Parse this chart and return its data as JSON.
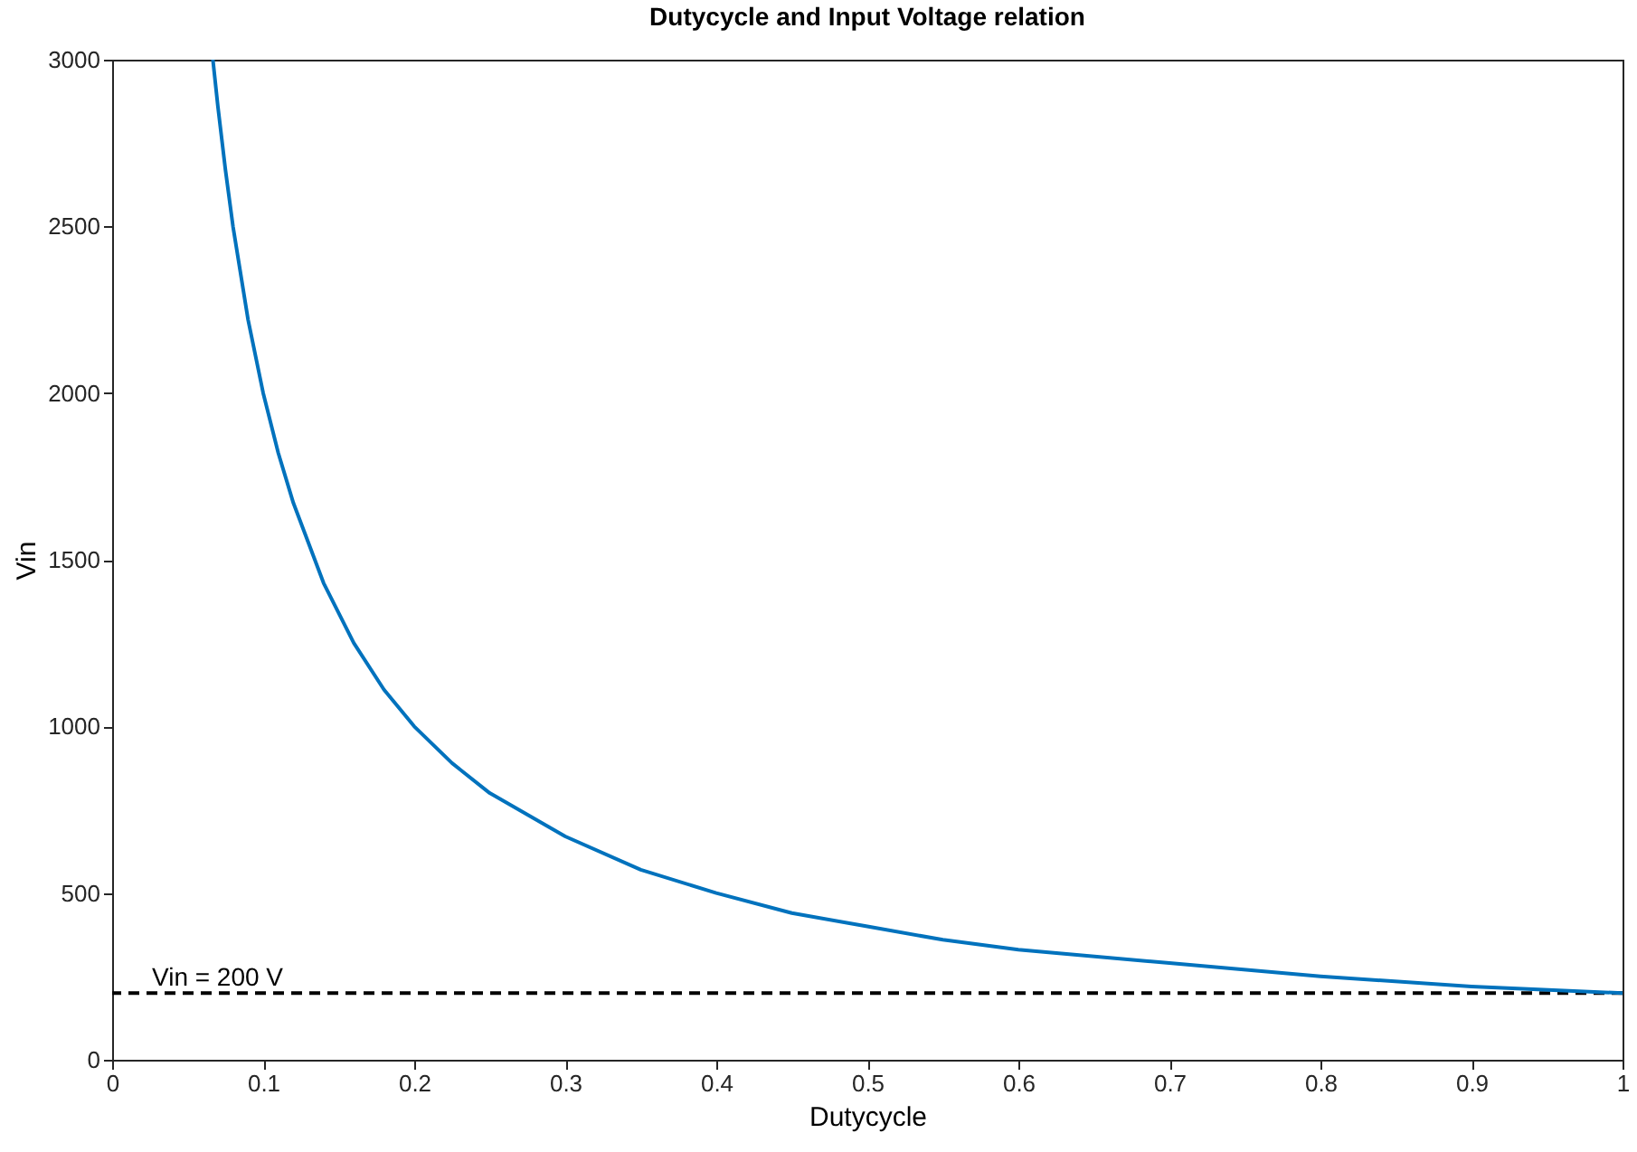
{
  "chart_data": {
    "type": "line",
    "title": "Dutycycle and Input Voltage relation",
    "xlabel": "Dutycycle",
    "ylabel": "Vin",
    "x": [
      0.0667,
      0.07,
      0.075,
      0.08,
      0.09,
      0.1,
      0.11,
      0.12,
      0.14,
      0.16,
      0.18,
      0.2,
      0.225,
      0.25,
      0.3,
      0.35,
      0.4,
      0.45,
      0.5,
      0.55,
      0.6,
      0.7,
      0.8,
      0.9,
      1
    ],
    "series": [
      {
        "color": "#0072bd",
        "values": [
          3000,
          2860,
          2670,
          2500,
          2220,
          2000,
          1820,
          1670,
          1430,
          1250,
          1110,
          1000,
          890,
          800,
          670,
          570,
          500,
          440,
          400,
          360,
          330,
          290,
          250,
          220,
          200
        ]
      }
    ],
    "xlim": [
      0,
      1
    ],
    "xticks": [
      0,
      0.1,
      0.2,
      0.3,
      0.4,
      0.5,
      0.6,
      0.7,
      0.8,
      0.9,
      1
    ],
    "ylim": [
      0,
      3000
    ],
    "yticks": [
      0,
      500,
      1000,
      1500,
      2000,
      2500,
      3000
    ],
    "grid": false,
    "legend": false,
    "marker": "none",
    "line_style": "solid",
    "ref_lines": [
      {
        "axis": "y",
        "value": 200,
        "label": "Vin = 200 V",
        "color": "#000000",
        "line_style": "dashed"
      }
    ]
  }
}
